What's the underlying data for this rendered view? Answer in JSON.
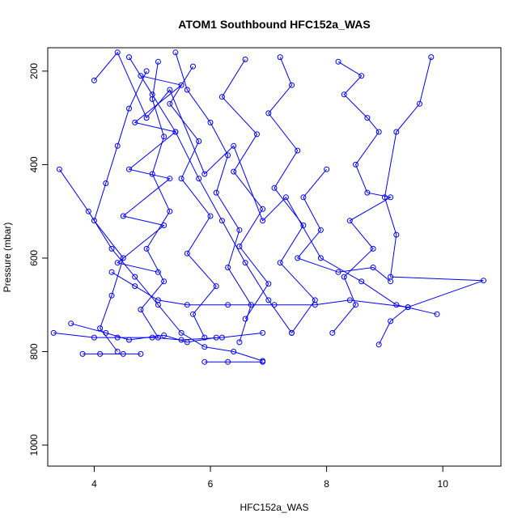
{
  "chart_data": {
    "type": "line",
    "title": "ATOM1 Southbound HFC152a_WAS",
    "xlabel": "HFC152a_WAS",
    "ylabel": "Pressure (mbar)",
    "xlim": [
      3.2,
      11.0
    ],
    "ylim": [
      1045,
      150
    ],
    "y_reversed": true,
    "grid": false,
    "legend": "none",
    "xticks": [
      4,
      6,
      8,
      10
    ],
    "yticks": [
      200,
      400,
      600,
      800,
      1000
    ],
    "series_color": "#0000ff",
    "marker": "open-circle",
    "series": [
      {
        "values": [
          [
            4.0,
            220
          ],
          [
            4.4,
            160
          ],
          [
            4.9,
            300
          ],
          [
            5.3,
            240
          ],
          [
            5.9,
            420
          ],
          [
            6.4,
            360
          ],
          [
            6.9,
            520
          ],
          [
            7.3,
            470
          ],
          [
            7.9,
            600
          ],
          [
            8.6,
            650
          ],
          [
            9.2,
            700
          ],
          [
            9.9,
            720
          ]
        ]
      },
      {
        "values": [
          [
            3.4,
            410
          ],
          [
            3.9,
            500
          ],
          [
            4.3,
            580
          ],
          [
            4.7,
            640
          ],
          [
            5.1,
            700
          ],
          [
            5.5,
            760
          ],
          [
            5.9,
            790
          ],
          [
            6.4,
            800
          ],
          [
            6.9,
            820
          ]
        ]
      },
      {
        "values": [
          [
            4.6,
            170
          ],
          [
            5.0,
            250
          ],
          [
            5.4,
            330
          ],
          [
            5.8,
            430
          ],
          [
            6.2,
            520
          ],
          [
            6.6,
            610
          ],
          [
            7.0,
            690
          ],
          [
            7.4,
            760
          ]
        ]
      },
      {
        "values": [
          [
            9.8,
            170
          ],
          [
            9.6,
            270
          ],
          [
            9.2,
            330
          ],
          [
            9.0,
            470
          ],
          [
            9.2,
            550
          ],
          [
            9.1,
            640
          ],
          [
            10.7,
            648
          ],
          [
            9.4,
            705
          ],
          [
            9.1,
            735
          ],
          [
            8.9,
            785
          ]
        ]
      },
      {
        "values": [
          [
            8.2,
            180
          ],
          [
            8.6,
            210
          ],
          [
            8.3,
            250
          ],
          [
            8.7,
            300
          ],
          [
            8.9,
            330
          ],
          [
            8.5,
            400
          ],
          [
            8.7,
            460
          ],
          [
            9.1,
            470
          ],
          [
            8.4,
            520
          ],
          [
            8.8,
            580
          ],
          [
            8.3,
            640
          ],
          [
            8.5,
            700
          ],
          [
            8.1,
            760
          ]
        ]
      },
      {
        "values": [
          [
            5.4,
            160
          ],
          [
            5.6,
            240
          ],
          [
            6.0,
            310
          ],
          [
            6.3,
            380
          ],
          [
            6.1,
            460
          ],
          [
            6.5,
            540
          ],
          [
            6.3,
            620
          ],
          [
            6.7,
            700
          ],
          [
            6.5,
            780
          ]
        ]
      },
      {
        "values": [
          [
            3.6,
            740
          ],
          [
            4.2,
            760
          ],
          [
            4.6,
            775
          ],
          [
            5.2,
            765
          ],
          [
            5.6,
            780
          ],
          [
            6.1,
            770
          ]
        ]
      },
      {
        "values": [
          [
            4.9,
            200
          ],
          [
            4.6,
            280
          ],
          [
            4.4,
            360
          ],
          [
            4.2,
            440
          ],
          [
            4.0,
            520
          ],
          [
            4.5,
            600
          ],
          [
            4.3,
            680
          ],
          [
            4.1,
            750
          ],
          [
            4.4,
            800
          ]
        ]
      },
      {
        "values": [
          [
            5.7,
            190
          ],
          [
            5.3,
            270
          ],
          [
            5.8,
            350
          ],
          [
            5.5,
            430
          ],
          [
            6.0,
            510
          ],
          [
            5.6,
            590
          ],
          [
            6.1,
            660
          ],
          [
            5.7,
            720
          ],
          [
            5.9,
            770
          ]
        ]
      },
      {
        "values": [
          [
            7.2,
            170
          ],
          [
            7.4,
            230
          ],
          [
            7.0,
            290
          ],
          [
            7.5,
            370
          ],
          [
            7.1,
            450
          ],
          [
            7.6,
            530
          ],
          [
            7.2,
            610
          ],
          [
            7.8,
            690
          ],
          [
            7.4,
            760
          ]
        ]
      },
      {
        "values": [
          [
            5.1,
            180
          ],
          [
            5.0,
            260
          ],
          [
            5.2,
            340
          ],
          [
            5.0,
            420
          ],
          [
            5.3,
            500
          ],
          [
            4.9,
            580
          ],
          [
            5.2,
            650
          ],
          [
            4.8,
            710
          ],
          [
            5.1,
            770
          ]
        ]
      },
      {
        "values": [
          [
            3.3,
            760
          ],
          [
            4.0,
            770
          ],
          [
            4.4,
            770
          ],
          [
            5.0,
            770
          ],
          [
            5.5,
            775
          ],
          [
            6.2,
            770
          ],
          [
            6.9,
            760
          ]
        ]
      },
      {
        "values": [
          [
            6.6,
            175
          ],
          [
            6.2,
            255
          ],
          [
            6.8,
            335
          ],
          [
            6.4,
            415
          ],
          [
            6.9,
            495
          ],
          [
            6.5,
            575
          ],
          [
            7.0,
            655
          ],
          [
            6.6,
            730
          ]
        ]
      },
      {
        "values": [
          [
            4.3,
            630
          ],
          [
            4.7,
            660
          ],
          [
            5.1,
            690
          ],
          [
            5.6,
            700
          ],
          [
            6.3,
            700
          ],
          [
            7.1,
            700
          ],
          [
            7.8,
            700
          ],
          [
            8.4,
            690
          ],
          [
            9.4,
            705
          ]
        ]
      },
      {
        "values": [
          [
            8.0,
            410
          ],
          [
            7.6,
            470
          ],
          [
            7.9,
            540
          ],
          [
            7.5,
            600
          ],
          [
            8.2,
            630
          ],
          [
            8.8,
            620
          ],
          [
            9.1,
            650
          ]
        ]
      },
      {
        "values": [
          [
            4.8,
            210
          ],
          [
            5.5,
            230
          ],
          [
            4.7,
            310
          ],
          [
            5.4,
            330
          ],
          [
            4.6,
            410
          ],
          [
            5.3,
            430
          ],
          [
            4.5,
            510
          ],
          [
            5.2,
            530
          ],
          [
            4.4,
            610
          ],
          [
            5.1,
            630
          ]
        ]
      },
      {
        "values": [
          [
            3.8,
            805
          ],
          [
            4.1,
            805
          ],
          [
            4.5,
            805
          ],
          [
            4.8,
            805
          ]
        ]
      },
      {
        "values": [
          [
            5.9,
            822
          ],
          [
            6.3,
            822
          ],
          [
            6.9,
            822
          ]
        ]
      }
    ]
  }
}
